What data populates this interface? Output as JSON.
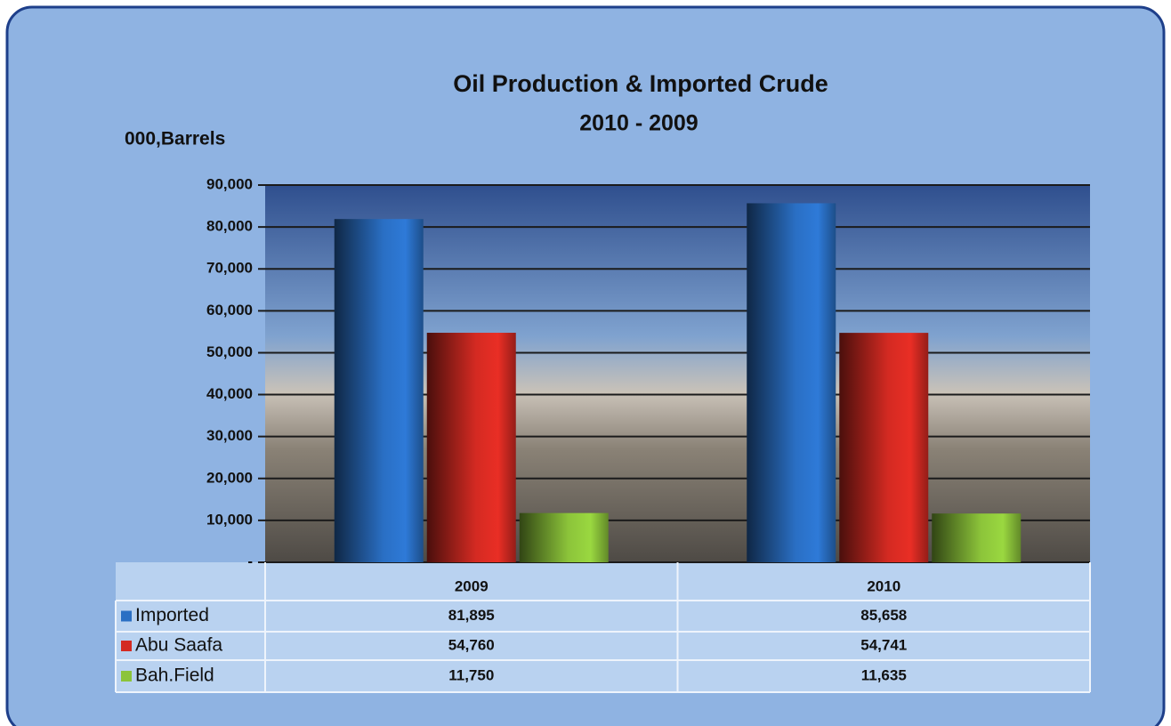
{
  "chart_data": {
    "type": "bar",
    "title": "Oil Production & Imported Crude",
    "subtitle": "2010 - 2009",
    "y_label": "000,Barrels",
    "categories": [
      "2009",
      "2010"
    ],
    "series": [
      {
        "name": "Imported",
        "color": "#2a6fc4",
        "values": [
          81895,
          85658
        ],
        "value_labels": [
          "81,895",
          "85,658"
        ]
      },
      {
        "name": "Abu Saafa",
        "color": "#d42a22",
        "values": [
          54760,
          54741
        ],
        "value_labels": [
          "54,760",
          "54,741"
        ]
      },
      {
        "name": "Bah.Field",
        "color": "#8cc43a",
        "values": [
          11750,
          11635
        ],
        "value_labels": [
          "11,750",
          "11,635"
        ]
      }
    ],
    "ylim": [
      0,
      90000
    ],
    "yticks": [
      {
        "value": 0,
        "label": "-"
      },
      {
        "value": 10000,
        "label": "10,000"
      },
      {
        "value": 20000,
        "label": "20,000"
      },
      {
        "value": 30000,
        "label": "30,000"
      },
      {
        "value": 40000,
        "label": "40,000"
      },
      {
        "value": 50000,
        "label": "50,000"
      },
      {
        "value": 60000,
        "label": "60,000"
      },
      {
        "value": 70000,
        "label": "70,000"
      },
      {
        "value": 80000,
        "label": "80,000"
      },
      {
        "value": 90000,
        "label": "90,000"
      }
    ],
    "grid": true
  }
}
